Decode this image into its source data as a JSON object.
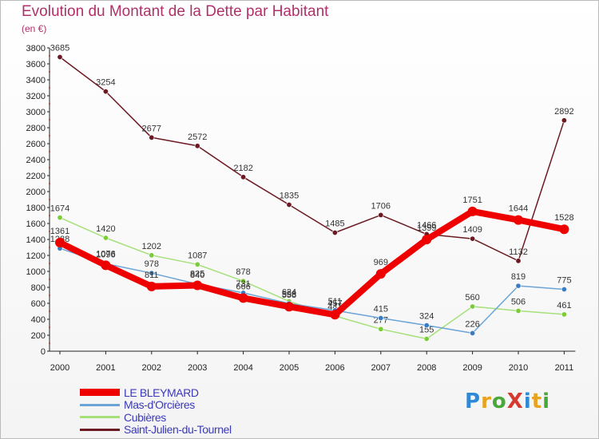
{
  "title": "Evolution du Montant de la Dette par Habitant",
  "unit_label": "(en €)",
  "logo": {
    "text": "ProXiti",
    "colors": [
      "#2e8ad6",
      "#e8a21c",
      "#4aa83a",
      "#d63a2e",
      "#2e8ad6",
      "#e8a21c",
      "#4aa83a"
    ]
  },
  "chart_data": {
    "type": "line",
    "x": [
      "2000",
      "2001",
      "2002",
      "2003",
      "2004",
      "2005",
      "2006",
      "2007",
      "2008",
      "2009",
      "2010",
      "2011"
    ],
    "ylim": [
      0,
      3800
    ],
    "yticks": [
      0,
      200,
      400,
      600,
      800,
      1000,
      1200,
      1400,
      1600,
      1800,
      2000,
      2200,
      2400,
      2600,
      2800,
      3000,
      3200,
      3400,
      3600,
      3800
    ],
    "grid": false,
    "legend_position": "bottom-left",
    "series": [
      {
        "name": "Saint-Julien-du-Tournel",
        "color": "#6b1a22",
        "marker_color": "#6b1a22",
        "width": "thin",
        "values": [
          3685,
          3254,
          2677,
          2572,
          2182,
          1835,
          1485,
          1706,
          1466,
          1409,
          1132,
          2892
        ],
        "labels": [
          "3685",
          "3254",
          "2677",
          "2572",
          "2182",
          "1835",
          "1485",
          "1706",
          "1466",
          "1409",
          "1132",
          "2892"
        ]
      },
      {
        "name": "Cubières",
        "color": "#a6e07a",
        "marker_color": "#7ccc3a",
        "width": "thin",
        "values": [
          1674,
          1420,
          1202,
          1087,
          878,
          624,
          441,
          277,
          155,
          560,
          506,
          461
        ],
        "labels": [
          "1674",
          "1420",
          "1202",
          "1087",
          "878",
          "624",
          "441",
          "277",
          "155",
          "560",
          "506",
          "461"
        ]
      },
      {
        "name": "Mas-d'Orcières",
        "color": "#6ba4d6",
        "marker_color": "#3a7cc4",
        "width": "thin",
        "values": [
          1288,
          1096,
          978,
          840,
          731,
          598,
          511,
          415,
          324,
          226,
          819,
          775
        ],
        "labels": [
          "1288",
          "1096",
          "978",
          "840",
          "731",
          "598",
          "511",
          "415",
          "324",
          "226",
          "819",
          "775"
        ]
      },
      {
        "name": "LE BLEYMARD",
        "color": "#ee0000",
        "marker_color": "#ee0000",
        "width": "thick",
        "values": [
          1361,
          1076,
          811,
          825,
          666,
          558,
          457,
          969,
          1399,
          1751,
          1644,
          1528
        ],
        "labels": [
          "1361",
          "1076",
          "811",
          "825",
          "666",
          "558",
          "457",
          "969",
          "1399",
          "1751",
          "1644",
          "1528"
        ]
      }
    ]
  },
  "legend": [
    {
      "label": "LE BLEYMARD",
      "color": "#ee0000",
      "width": "thick"
    },
    {
      "label": "Mas-d'Orcières",
      "color": "#6ba4d6",
      "width": "thin"
    },
    {
      "label": "Cubières",
      "color": "#a6e07a",
      "width": "thin"
    },
    {
      "label": "Saint-Julien-du-Tournel",
      "color": "#6b1a22",
      "width": "thin"
    }
  ]
}
